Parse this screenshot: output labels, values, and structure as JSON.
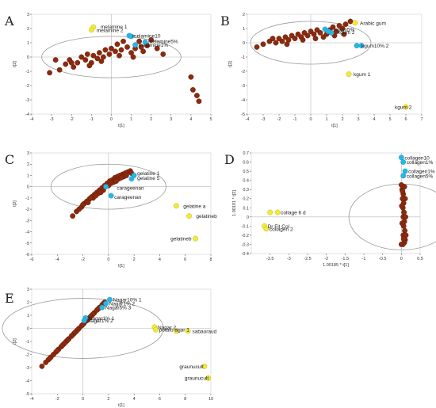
{
  "colors": {
    "brown": "#8b2a0e",
    "brown_edge": "#5a1a06",
    "cyan": "#29b6e6",
    "yellow": "#f2ea3a",
    "yellow_edge": "#b8a800",
    "grid": "#b7b7b7",
    "ellipse": "#9a9a9a",
    "axis": "#444444"
  },
  "chart_data": [
    {
      "type": "scatter",
      "letter": "A",
      "xlabel": "t[1]",
      "ylabel": "t[2]",
      "xlim": [
        -4,
        5
      ],
      "ylim": [
        -4,
        3
      ],
      "xticks": [
        "-4",
        "-3",
        "-2",
        "-1",
        "0",
        "1",
        "2",
        "3",
        "4",
        "5"
      ],
      "yticks": [
        "-4",
        "-3",
        "-2",
        "-1",
        "0",
        "1",
        "2",
        "3"
      ],
      "ellipse": {
        "cx": 0,
        "cy": 0,
        "rx": 3.5,
        "ry": 1.45
      },
      "cyan_points": [
        [
          0.9,
          1.5
        ],
        [
          1.7,
          1.05
        ],
        [
          1.2,
          0.85
        ],
        [
          1.0,
          1.45
        ]
      ],
      "yellow_points": [
        [
          -0.9,
          2.1
        ],
        [
          -1.0,
          1.9
        ]
      ],
      "brown_points": [
        [
          -3.1,
          -1.1
        ],
        [
          -2.8,
          -0.2
        ],
        [
          -2.3,
          -0.5
        ],
        [
          -2.1,
          -0.2
        ],
        [
          -1.9,
          -0.7
        ],
        [
          -1.7,
          -0.4
        ],
        [
          -1.5,
          0.0
        ],
        [
          -1.3,
          -0.2
        ],
        [
          -1.2,
          0.2
        ],
        [
          -1.0,
          -0.4
        ],
        [
          -0.9,
          0.1
        ],
        [
          -0.7,
          -0.1
        ],
        [
          -0.6,
          0.3
        ],
        [
          -0.4,
          0.0
        ],
        [
          -0.3,
          0.5
        ],
        [
          -0.1,
          0.2
        ],
        [
          0.0,
          0.6
        ],
        [
          0.2,
          0.4
        ],
        [
          0.3,
          0.9
        ],
        [
          0.5,
          0.5
        ],
        [
          0.6,
          1.1
        ],
        [
          0.8,
          0.7
        ],
        [
          1.0,
          0.3
        ],
        [
          1.2,
          0.6
        ],
        [
          1.4,
          1.1
        ],
        [
          1.6,
          0.4
        ],
        [
          1.8,
          0.8
        ],
        [
          2.0,
          1.2
        ],
        [
          2.3,
          0.6
        ],
        [
          2.6,
          0.2
        ],
        [
          -2.6,
          -0.9
        ],
        [
          -2.0,
          -0.4
        ],
        [
          -1.1,
          -0.6
        ],
        [
          -0.5,
          -0.3
        ],
        [
          0.4,
          0.1
        ],
        [
          1.1,
          0.0
        ],
        [
          1.5,
          0.7
        ],
        [
          4.0,
          -1.4
        ],
        [
          4.1,
          -2.3
        ],
        [
          4.3,
          -2.7
        ],
        [
          4.4,
          -3.1
        ]
      ],
      "labels": [
        {
          "text": "melamine 1",
          "x": -0.7,
          "y": 2.15
        },
        {
          "text": "melamine 2",
          "x": -0.9,
          "y": 1.9
        },
        {
          "text": "melamine10",
          "x": 0.9,
          "y": 1.5
        },
        {
          "text": "melamine5%",
          "x": 1.7,
          "y": 1.1
        },
        {
          "text": "melamine1%",
          "x": 1.2,
          "y": 0.85
        }
      ]
    },
    {
      "type": "scatter",
      "letter": "B",
      "xlabel": "t[1]",
      "ylabel": "t[2]",
      "xlim": [
        -4,
        7
      ],
      "ylim": [
        -5,
        2
      ],
      "xticks": [
        "-4",
        "-3",
        "-2",
        "-1",
        "0",
        "1",
        "2",
        "3",
        "4",
        "5",
        "6",
        "7"
      ],
      "yticks": [
        "-5",
        "-4",
        "-3",
        "-2",
        "-1",
        "0",
        "1",
        "2"
      ],
      "ellipse": {
        "cx": 0,
        "cy": 0,
        "rx": 3.8,
        "ry": 1.5
      },
      "cyan_points": [
        [
          0.9,
          0.95
        ],
        [
          1.3,
          0.7
        ],
        [
          1.1,
          0.8
        ],
        [
          2.9,
          -0.2
        ],
        [
          3.2,
          -0.2
        ]
      ],
      "yellow_points": [
        [
          2.8,
          1.4
        ],
        [
          2.4,
          -2.2
        ],
        [
          6.0,
          -4.5
        ]
      ],
      "brown_points": [
        [
          -3.4,
          -0.3
        ],
        [
          -3.0,
          -0.1
        ],
        [
          -2.6,
          0.1
        ],
        [
          -2.2,
          0.0
        ],
        [
          -2.0,
          0.3
        ],
        [
          -1.8,
          0.1
        ],
        [
          -1.6,
          0.4
        ],
        [
          -1.4,
          0.2
        ],
        [
          -1.2,
          0.5
        ],
        [
          -1.0,
          0.3
        ],
        [
          -0.8,
          0.6
        ],
        [
          -0.6,
          0.4
        ],
        [
          -0.4,
          0.7
        ],
        [
          -0.2,
          0.5
        ],
        [
          0.0,
          0.8
        ],
        [
          0.2,
          0.6
        ],
        [
          0.4,
          0.9
        ],
        [
          0.6,
          0.7
        ],
        [
          0.8,
          0.4
        ],
        [
          1.0,
          0.6
        ],
        [
          1.2,
          0.9
        ],
        [
          1.4,
          1.1
        ],
        [
          1.6,
          0.8
        ],
        [
          1.8,
          1.2
        ],
        [
          2.0,
          1.0
        ],
        [
          2.2,
          1.3
        ],
        [
          2.5,
          1.5
        ],
        [
          -2.4,
          0.3
        ],
        [
          -1.5,
          -0.1
        ],
        [
          -0.5,
          0.2
        ],
        [
          0.3,
          0.3
        ],
        [
          1.5,
          0.5
        ],
        [
          2.1,
          0.6
        ]
      ],
      "labels": [
        {
          "text": "Arabic gum",
          "x": 2.9,
          "y": 1.4
        },
        {
          "text": "kgum5%",
          "x": 1.3,
          "y": 0.95
        },
        {
          "text": "kgum 2",
          "x": 1.5,
          "y": 0.75
        },
        {
          "text": "kgum10%.2",
          "x": 3.0,
          "y": -0.2
        },
        {
          "text": "kgum 1",
          "x": 2.5,
          "y": -2.2
        },
        {
          "text": "kgum 2",
          "x": 5.1,
          "y": -4.5
        }
      ]
    },
    {
      "type": "scatter",
      "letter": "C",
      "xlabel": "t[1]",
      "ylabel": "t[2]",
      "xlim": [
        -6,
        8
      ],
      "ylim": [
        -6,
        3
      ],
      "xticks": [
        "-6",
        "-4",
        "-2",
        "0",
        "2",
        "4",
        "6",
        "8"
      ],
      "yticks": [
        "-6",
        "-5",
        "-4",
        "-3",
        "-2",
        "-1",
        "0",
        "1",
        "2",
        "3"
      ],
      "ellipse": {
        "cx": 0,
        "cy": 0,
        "rx": 4.5,
        "ry": 2.0
      },
      "cyan_points": [
        [
          -0.2,
          0.0
        ],
        [
          0.2,
          -0.8
        ],
        [
          2.0,
          1.0
        ],
        [
          1.8,
          0.7
        ]
      ],
      "yellow_points": [
        [
          5.3,
          -1.7
        ],
        [
          6.3,
          -2.6
        ],
        [
          6.8,
          -4.6
        ]
      ],
      "brown_points": [
        [
          -2.8,
          -2.6
        ],
        [
          -2.5,
          -2.2
        ],
        [
          -2.3,
          -2.0
        ],
        [
          -2.1,
          -1.8
        ],
        [
          -1.9,
          -1.5
        ],
        [
          -1.7,
          -1.3
        ],
        [
          -1.5,
          -1.1
        ],
        [
          -1.3,
          -0.9
        ],
        [
          -1.1,
          -0.7
        ],
        [
          -0.9,
          -0.5
        ],
        [
          -0.7,
          -0.3
        ],
        [
          -0.5,
          -0.1
        ],
        [
          -0.3,
          0.1
        ],
        [
          -0.1,
          0.3
        ],
        [
          0.1,
          0.5
        ],
        [
          0.3,
          0.6
        ],
        [
          0.5,
          0.8
        ],
        [
          0.7,
          0.9
        ],
        [
          0.9,
          1.0
        ],
        [
          1.1,
          1.1
        ],
        [
          1.3,
          1.2
        ],
        [
          1.5,
          1.3
        ],
        [
          1.7,
          1.4
        ],
        [
          -2.0,
          -1.6
        ],
        [
          -1.6,
          -1.4
        ],
        [
          -1.2,
          -1.0
        ],
        [
          -0.8,
          -0.6
        ],
        [
          -0.4,
          -0.3
        ],
        [
          0.0,
          0.1
        ],
        [
          0.4,
          0.4
        ],
        [
          0.8,
          0.7
        ],
        [
          1.2,
          0.9
        ],
        [
          -1.4,
          -1.0
        ],
        [
          -1.0,
          -0.8
        ],
        [
          -0.6,
          -0.5
        ],
        [
          0.2,
          0.3
        ],
        [
          0.6,
          0.5
        ],
        [
          1.0,
          0.8
        ],
        [
          1.4,
          1.0
        ],
        [
          1.8,
          1.2
        ]
      ],
      "labels": [
        {
          "text": "gelatine 1",
          "x": 2.0,
          "y": 1.2
        },
        {
          "text": "gelatine 5",
          "x": 2.0,
          "y": 0.8
        },
        {
          "text": "carageenan",
          "x": 0.4,
          "y": -0.1
        },
        {
          "text": "carageenan",
          "x": 0.2,
          "y": -0.9
        },
        {
          "text": "gelatine a",
          "x": 5.6,
          "y": -1.7
        },
        {
          "text": "gelatineb",
          "x": 6.6,
          "y": -2.6
        },
        {
          "text": "gelatineb",
          "x": 4.6,
          "y": -4.6
        }
      ]
    },
    {
      "type": "scatter",
      "letter": "D",
      "xlabel": "1.00185 * t[1]",
      "ylabel": "1.00191 * t[2]",
      "xlim": [
        -4,
        0.5
      ],
      "ylim": [
        -0.4,
        0.7
      ],
      "xticks": [
        "-3.5",
        "-3",
        "-2.5",
        "-2",
        "-1.5",
        "-1",
        "-0.5",
        "0",
        "0.5"
      ],
      "yticks": [
        "-0.4",
        "-0.3",
        "-0.2",
        "-0.1",
        "0",
        "0.1",
        "0.2",
        "0.3",
        "0.4",
        "0.5",
        "0.6",
        "0.7"
      ],
      "ellipse": {
        "cx": 0,
        "cy": 0,
        "rx": 1.4,
        "ry": 0.36
      },
      "cyan_points": [
        [
          0.0,
          0.65
        ],
        [
          0.05,
          0.6
        ],
        [
          0.1,
          0.5
        ],
        [
          0.05,
          0.45
        ]
      ],
      "yellow_points": [
        [
          -3.5,
          0.05
        ],
        [
          -3.3,
          0.05
        ],
        [
          -3.65,
          -0.1
        ],
        [
          -3.6,
          -0.13
        ]
      ],
      "brown_points": [
        [
          0.0,
          0.35
        ],
        [
          0.02,
          0.3
        ],
        [
          0.05,
          0.25
        ],
        [
          0.03,
          0.2
        ],
        [
          0.06,
          0.15
        ],
        [
          0.04,
          0.1
        ],
        [
          0.07,
          0.05
        ],
        [
          0.05,
          0.0
        ],
        [
          0.08,
          -0.05
        ],
        [
          0.06,
          -0.1
        ],
        [
          0.09,
          -0.15
        ],
        [
          0.05,
          -0.2
        ],
        [
          0.1,
          -0.25
        ],
        [
          0.08,
          -0.28
        ],
        [
          0.04,
          -0.3
        ],
        [
          0.0,
          -0.3
        ],
        [
          0.12,
          -0.2
        ],
        [
          0.11,
          0.0
        ],
        [
          0.01,
          0.12
        ],
        [
          0.02,
          -0.07
        ],
        [
          0.1,
          0.2
        ],
        [
          0.03,
          0.28
        ],
        [
          0.08,
          0.33
        ],
        [
          0.06,
          -0.24
        ]
      ],
      "labels": [
        {
          "text": "collagen10",
          "x": 0.0,
          "y": 0.65
        },
        {
          "text": "collagen1%",
          "x": 0.05,
          "y": 0.6
        },
        {
          "text": "collagen1%",
          "x": 0.1,
          "y": 0.5
        },
        {
          "text": "collagen5%",
          "x": 0.05,
          "y": 0.45
        },
        {
          "text": "collage 6 d",
          "x": -3.3,
          "y": 0.05
        },
        {
          "text": "Dr Fit Col",
          "x": -3.65,
          "y": -0.1
        },
        {
          "text": "collagen 2",
          "x": -3.6,
          "y": -0.13
        }
      ]
    },
    {
      "type": "scatter",
      "letter": "E",
      "xlabel": "t[1]",
      "ylabel": "t[2]",
      "xlim": [
        -4,
        10
      ],
      "ylim": [
        -5,
        3
      ],
      "xticks": [
        "-4",
        "-2",
        "0",
        "2",
        "4",
        "6",
        "8",
        "10"
      ],
      "yticks": [
        "-5",
        "-4",
        "-3",
        "-2",
        "-1",
        "0",
        "1",
        "2",
        "3"
      ],
      "ellipse": {
        "cx": 0,
        "cy": 0,
        "rx": 6.3,
        "ry": 2.3
      },
      "cyan_points": [
        [
          2.1,
          2.2
        ],
        [
          1.8,
          1.9
        ],
        [
          1.5,
          1.6
        ],
        [
          0.2,
          0.8
        ],
        [
          0.1,
          0.6
        ]
      ],
      "yellow_points": [
        [
          5.6,
          0.1
        ],
        [
          5.7,
          -0.1
        ],
        [
          7.3,
          -0.2
        ],
        [
          8.2,
          -0.2
        ],
        [
          9.5,
          -2.9
        ],
        [
          9.8,
          -3.8
        ]
      ],
      "brown_points": [
        [
          -3.2,
          -2.9
        ],
        [
          -2.9,
          -2.6
        ],
        [
          -2.7,
          -2.4
        ],
        [
          -2.5,
          -2.2
        ],
        [
          -2.3,
          -2.0
        ],
        [
          -2.1,
          -1.8
        ],
        [
          -1.9,
          -1.6
        ],
        [
          -1.7,
          -1.4
        ],
        [
          -1.5,
          -1.2
        ],
        [
          -1.3,
          -1.0
        ],
        [
          -1.1,
          -0.8
        ],
        [
          -0.9,
          -0.6
        ],
        [
          -0.7,
          -0.4
        ],
        [
          -0.5,
          -0.2
        ],
        [
          -0.3,
          0.0
        ],
        [
          -0.1,
          0.2
        ],
        [
          0.1,
          0.4
        ],
        [
          0.3,
          0.6
        ],
        [
          0.5,
          0.8
        ],
        [
          0.7,
          1.0
        ],
        [
          0.9,
          1.2
        ],
        [
          1.1,
          1.4
        ],
        [
          1.3,
          1.6
        ],
        [
          1.5,
          1.8
        ],
        [
          1.7,
          2.0
        ],
        [
          -2.0,
          -1.7
        ],
        [
          -1.6,
          -1.3
        ],
        [
          -1.2,
          -0.9
        ],
        [
          -0.8,
          -0.5
        ],
        [
          -0.4,
          -0.1
        ],
        [
          0.0,
          0.3
        ],
        [
          0.4,
          0.7
        ],
        [
          0.8,
          1.1
        ],
        [
          1.2,
          1.5
        ],
        [
          1.6,
          1.9
        ],
        [
          -2.6,
          -2.3
        ],
        [
          -1.4,
          -1.1
        ],
        [
          -0.6,
          -0.3
        ],
        [
          0.6,
          0.9
        ]
      ],
      "labels": [
        {
          "text": "Nagar10% 1",
          "x": 2.1,
          "y": 2.2
        },
        {
          "text": "Nagar1% 2",
          "x": 1.8,
          "y": 1.9
        },
        {
          "text": "Nagar5% 3",
          "x": 1.5,
          "y": 1.6
        },
        {
          "text": "Nagar1% 1",
          "x": 0.2,
          "y": 0.8
        },
        {
          "text": "Nagar1% 2",
          "x": 0.1,
          "y": 0.6
        },
        {
          "text": "Nagar 2",
          "x": 5.6,
          "y": 0.1
        },
        {
          "text": "potato agar 1",
          "x": 5.7,
          "y": -0.1
        },
        {
          "text": "sabaoraud",
          "x": 8.3,
          "y": -0.2
        },
        {
          "text": "graunucult",
          "x": 7.3,
          "y": -2.9
        },
        {
          "text": "graunucult",
          "x": 7.7,
          "y": -3.8
        }
      ]
    }
  ]
}
